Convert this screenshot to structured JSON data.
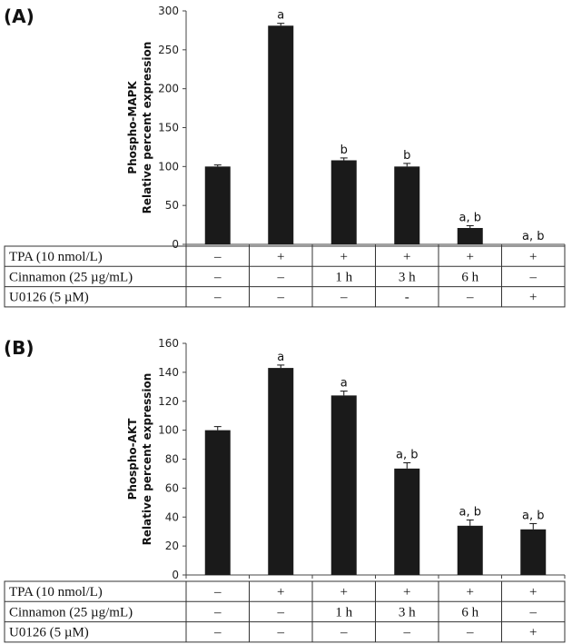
{
  "chart_data": [
    {
      "type": "bar",
      "panel_label": "(A)",
      "ylabel_line1": "Phospho-MAPK",
      "ylabel_line2": "Relative percent expression",
      "ylim": [
        0,
        300
      ],
      "yticks": [
        "0",
        "50",
        "100",
        "150",
        "200",
        "250",
        "300"
      ],
      "values": [
        100,
        281,
        108,
        100,
        21,
        0
      ],
      "errors": [
        2,
        3,
        3,
        4,
        3,
        0
      ],
      "annotations": [
        "",
        "a",
        "b",
        "b",
        "a, b",
        "a, b"
      ],
      "table": [
        {
          "label": "TPA (10 nmol/L)",
          "cells": [
            "–",
            "+",
            "+",
            "+",
            "+",
            "+"
          ]
        },
        {
          "label": "Cinnamon (25 µg/mL)",
          "cells": [
            "–",
            "–",
            "1 h",
            "3 h",
            "6 h",
            "–"
          ]
        },
        {
          "label": "U0126 (5 µM)",
          "cells": [
            "–",
            "–",
            "–",
            "-",
            "–",
            "+"
          ]
        }
      ]
    },
    {
      "type": "bar",
      "panel_label": "(B)",
      "ylabel_line1": "Phospho-AKT",
      "ylabel_line2": "Relative percent expression",
      "ylim": [
        0,
        160
      ],
      "yticks": [
        "0",
        "20",
        "40",
        "60",
        "80",
        "100",
        "120",
        "140",
        "160"
      ],
      "values": [
        100,
        143,
        124,
        73.5,
        34,
        31.5
      ],
      "errors": [
        2.5,
        2,
        3,
        4,
        4,
        4
      ],
      "annotations": [
        "",
        "a",
        "a",
        "a, b",
        "a, b",
        "a, b"
      ],
      "table": [
        {
          "label": "TPA (10 nmol/L)",
          "cells": [
            "–",
            "+",
            "+",
            "+",
            "+",
            "+"
          ]
        },
        {
          "label": "Cinnamon (25 µg/mL)",
          "cells": [
            "–",
            "–",
            "1 h",
            "3 h",
            "6 h",
            "–"
          ]
        },
        {
          "label": "U0126 (5 µM)",
          "cells": [
            "–",
            "–",
            "–",
            "–",
            "–",
            "+"
          ]
        }
      ]
    }
  ],
  "colors": {
    "bar": "#1a1a1a",
    "axis": "#444444"
  }
}
